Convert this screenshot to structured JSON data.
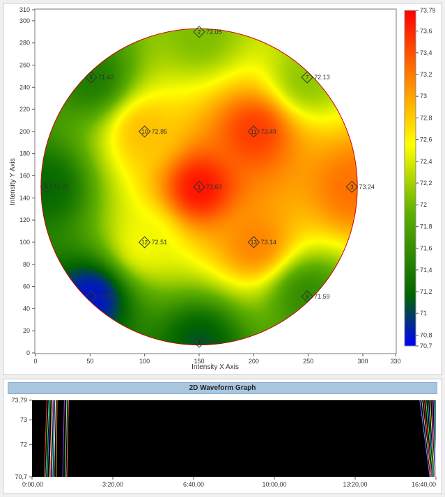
{
  "chart_data": [
    {
      "type": "heatmap",
      "subtype": "wafer-contour-map",
      "xlabel": "Intensity X Axis",
      "ylabel": "Intensity Y Axis",
      "xlim": [
        0,
        330
      ],
      "ylim": [
        0,
        310
      ],
      "x_ticks": [
        0,
        50,
        100,
        150,
        200,
        250,
        300,
        330
      ],
      "y_ticks": [
        0,
        20,
        40,
        60,
        80,
        100,
        120,
        140,
        160,
        180,
        200,
        220,
        240,
        260,
        280,
        300,
        310
      ],
      "color_scale": {
        "min": 70.7,
        "max": 73.79,
        "tick_labels": [
          "73,79",
          "73,6",
          "73,4",
          "73,2",
          "73",
          "72,8",
          "72,6",
          "72,4",
          "72,2",
          "72",
          "71,8",
          "71,6",
          "71,4",
          "71,2",
          "71",
          "70,8",
          "70,7"
        ],
        "tick_values": [
          73.79,
          73.6,
          73.4,
          73.2,
          73.0,
          72.8,
          72.6,
          72.4,
          72.2,
          72.0,
          71.8,
          71.6,
          71.4,
          71.2,
          71.0,
          70.8,
          70.7
        ],
        "colors": [
          "#0000ff",
          "#006400",
          "#90d000",
          "#ffff00",
          "#ff8000",
          "#ff0000"
        ]
      },
      "points": [
        {
          "id": "1",
          "x": 150,
          "y": 150,
          "value": 73.69,
          "label": "73.69"
        },
        {
          "id": "2",
          "x": 150,
          "y": 290,
          "value": 72.05,
          "label": "72.05"
        },
        {
          "id": "3",
          "x": 290,
          "y": 150,
          "value": 73.24,
          "label": "73.24"
        },
        {
          "id": "4",
          "x": 150,
          "y": 10,
          "value": 71.11,
          "label": "71.11"
        },
        {
          "id": "5",
          "x": 10,
          "y": 150,
          "value": 71.22,
          "label": "71.22"
        },
        {
          "id": "6",
          "x": 51,
          "y": 249,
          "value": 71.42,
          "label": "71.42"
        },
        {
          "id": "7",
          "x": 249,
          "y": 249,
          "value": 72.13,
          "label": "72.13"
        },
        {
          "id": "8",
          "x": 249,
          "y": 51,
          "value": 71.59,
          "label": "71.59"
        },
        {
          "id": "9",
          "x": 51,
          "y": 51,
          "value": 70.8,
          "label": "70.80"
        },
        {
          "id": "10",
          "x": 100,
          "y": 200,
          "value": 72.85,
          "label": "72.85"
        },
        {
          "id": "11",
          "x": 200,
          "y": 200,
          "value": 73.49,
          "label": "73.49"
        },
        {
          "id": "12",
          "x": 100,
          "y": 100,
          "value": 72.51,
          "label": "72.51"
        },
        {
          "id": "13",
          "x": 200,
          "y": 100,
          "value": 73.14,
          "label": "73.14"
        }
      ]
    },
    {
      "type": "line",
      "title": "2D Waveform Graph",
      "x_tick_labels": [
        "0:00,00",
        "3:20,00",
        "6:40,00",
        "10:00,00",
        "13:20,00",
        "16:40,00"
      ],
      "x_tick_seconds": [
        0,
        200,
        400,
        600,
        800,
        1000
      ],
      "xlim_seconds": [
        0,
        1000
      ],
      "y_tick_labels": [
        "73,79",
        "73",
        "72",
        "70,7"
      ],
      "y_tick_values": [
        73.79,
        73.0,
        72.0,
        70.7
      ],
      "ylim": [
        70.7,
        73.79
      ],
      "background": "#000000",
      "trace_colors": [
        "#ff4040",
        "#40ff40",
        "#4080ff",
        "#ffff40",
        "#ff40ff",
        "#40ffff",
        "#ffffff",
        "#ff9020",
        "#a040ff",
        "#80ff80",
        "#ff8080",
        "#8080ff",
        "#c0c0c0"
      ],
      "trace_groups": [
        {
          "x_at_top_seconds": [
            37,
            42,
            45,
            50,
            52,
            55,
            58,
            62,
            80,
            86,
            90
          ],
          "x_at_bottom_seconds": [
            30,
            34,
            38,
            44,
            46,
            50,
            54,
            60,
            76,
            82,
            86
          ]
        },
        {
          "x_at_top_seconds": [
            960,
            965,
            970,
            975,
            980,
            985,
            990,
            995,
            1000
          ],
          "x_at_bottom_seconds": [
            985,
            988,
            990,
            993,
            995,
            997,
            999,
            1000,
            1000
          ]
        }
      ]
    }
  ]
}
